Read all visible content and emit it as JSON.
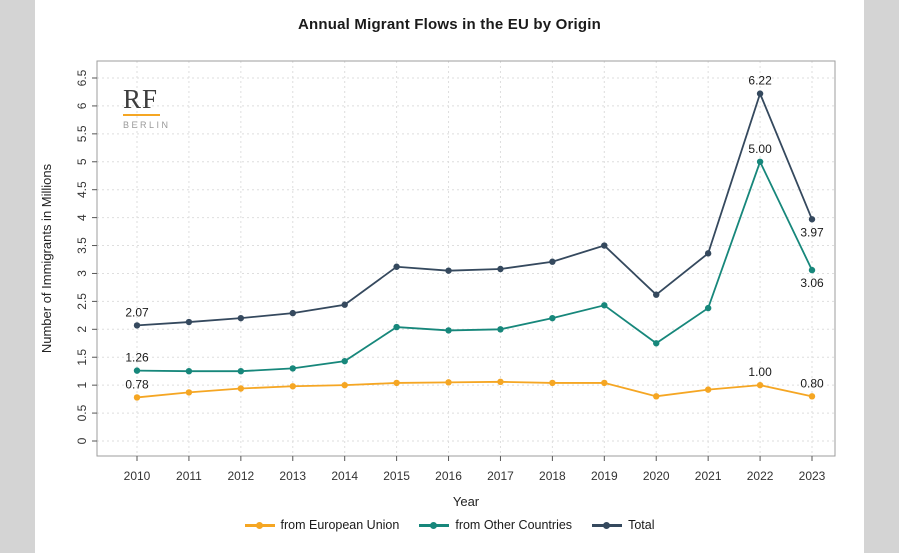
{
  "page": {
    "background": "#d4d4d4",
    "card_background": "#ffffff"
  },
  "chart": {
    "title": "Annual Migrant Flows in the EU by Origin",
    "xlabel": "Year",
    "ylabel": "Number of Immigrants in Millions"
  },
  "logo": {
    "text": "RF",
    "subtext": "BERLIN",
    "text_color": "#3d3d3d",
    "subtext_color": "#999999",
    "underline_color": "#f5a623"
  },
  "chart_data": {
    "type": "line",
    "x": [
      2010,
      2011,
      2012,
      2013,
      2014,
      2015,
      2016,
      2017,
      2018,
      2019,
      2020,
      2021,
      2022,
      2023
    ],
    "series": [
      {
        "name": "from European Union",
        "color": "#f5a623",
        "values": [
          0.78,
          0.87,
          0.94,
          0.98,
          1.0,
          1.04,
          1.05,
          1.06,
          1.04,
          1.04,
          0.8,
          0.92,
          1.0,
          0.8
        ]
      },
      {
        "name": "from Other Countries",
        "color": "#17877b",
        "values": [
          1.26,
          1.25,
          1.25,
          1.3,
          1.43,
          2.04,
          1.98,
          2.0,
          2.2,
          2.43,
          1.75,
          2.38,
          5.0,
          3.06
        ]
      },
      {
        "name": "Total",
        "color": "#35495e",
        "values": [
          2.07,
          2.13,
          2.2,
          2.29,
          2.44,
          3.12,
          3.05,
          3.08,
          3.21,
          3.5,
          2.62,
          3.36,
          6.22,
          3.97
        ]
      }
    ],
    "ylim": [
      0,
      6.5
    ],
    "ytick_step": 0.5,
    "grid": true,
    "grid_style": "dotted",
    "legend_position": "bottom",
    "annotations": [
      {
        "series": 2,
        "year": 2010,
        "text": "2.07",
        "position": "above"
      },
      {
        "series": 1,
        "year": 2010,
        "text": "1.26",
        "position": "above"
      },
      {
        "series": 0,
        "year": 2010,
        "text": "0.78",
        "position": "above"
      },
      {
        "series": 2,
        "year": 2022,
        "text": "6.22",
        "position": "above"
      },
      {
        "series": 1,
        "year": 2022,
        "text": "5.00",
        "position": "above"
      },
      {
        "series": 0,
        "year": 2022,
        "text": "1.00",
        "position": "above"
      },
      {
        "series": 2,
        "year": 2023,
        "text": "3.97",
        "position": "below"
      },
      {
        "series": 1,
        "year": 2023,
        "text": "3.06",
        "position": "below"
      },
      {
        "series": 0,
        "year": 2023,
        "text": "0.80",
        "position": "above"
      }
    ]
  }
}
